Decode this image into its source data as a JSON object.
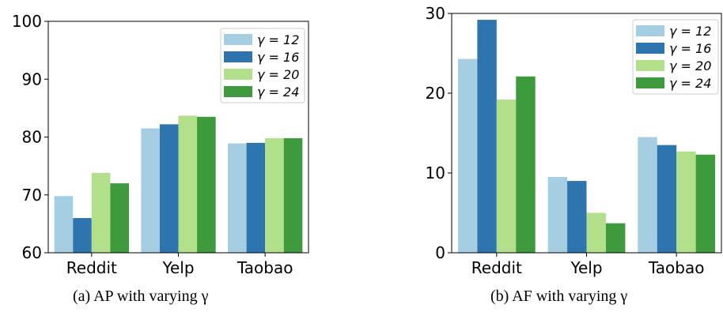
{
  "chart_data": [
    {
      "type": "bar",
      "categories": [
        "Reddit",
        "Yelp",
        "Taobao"
      ],
      "series": [
        {
          "name": "γ = 12",
          "values": [
            69.8,
            81.5,
            78.9
          ]
        },
        {
          "name": "γ = 16",
          "values": [
            66.0,
            82.2,
            79.0
          ]
        },
        {
          "name": "γ = 20",
          "values": [
            73.8,
            83.7,
            79.8
          ]
        },
        {
          "name": "γ = 24",
          "values": [
            72.0,
            83.5,
            79.8
          ]
        }
      ],
      "ylim": [
        60,
        100
      ],
      "yticks": [
        "60",
        "70",
        "80",
        "90",
        "100"
      ],
      "legend": "top-right",
      "caption": "(a)  AP with varying γ"
    },
    {
      "type": "bar",
      "categories": [
        "Reddit",
        "Yelp",
        "Taobao"
      ],
      "series": [
        {
          "name": "γ = 12",
          "values": [
            24.3,
            9.5,
            14.5
          ]
        },
        {
          "name": "γ = 16",
          "values": [
            29.2,
            9.0,
            13.5
          ]
        },
        {
          "name": "γ = 20",
          "values": [
            19.2,
            5.0,
            12.7
          ]
        },
        {
          "name": "γ = 24",
          "values": [
            22.1,
            3.7,
            12.3
          ]
        }
      ],
      "ylim": [
        0,
        30
      ],
      "yticks": [
        "0",
        "10",
        "20",
        "30"
      ],
      "legend": "top-right",
      "caption": "(b)  AF with varying γ"
    }
  ],
  "colors": [
    "#a6cee3",
    "#2e75b0",
    "#b2df8a",
    "#3d9a3d"
  ]
}
